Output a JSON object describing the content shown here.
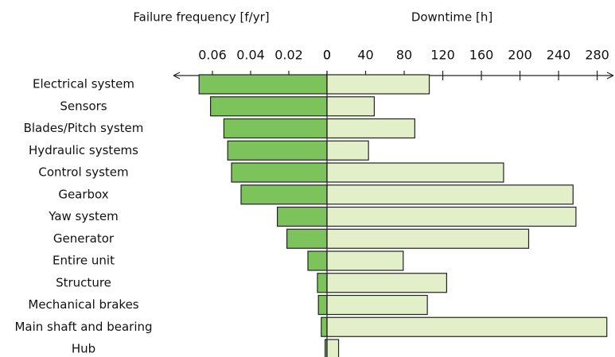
{
  "chart_data": [
    {
      "type": "bar",
      "title": "Failure frequency [f/yr]",
      "categories": [
        "Electrical system",
        "Sensors",
        "Blades/Pitch system",
        "Hydraulic systems",
        "Control system",
        "Gearbox",
        "Yaw system",
        "Generator",
        "Entire unit",
        "Structure",
        "Mechanical brakes",
        "Main shaft and bearing",
        "Hub"
      ],
      "values": [
        0.067,
        0.061,
        0.054,
        0.052,
        0.05,
        0.045,
        0.026,
        0.021,
        0.01,
        0.005,
        0.0045,
        0.003,
        0.001
      ],
      "color": "#7dc35b",
      "xlim": [
        0,
        0.08
      ],
      "xticks": [
        0,
        0.02,
        0.04,
        0.06
      ]
    },
    {
      "type": "bar",
      "title": "Downtime [h]",
      "values": [
        106,
        49,
        91,
        43,
        183,
        255,
        258,
        209,
        79,
        124,
        104,
        290,
        12
      ],
      "color": "#e2efc9",
      "xlim": [
        0,
        296
      ],
      "xticks": [
        0,
        40,
        80,
        120,
        160,
        200,
        240,
        280
      ]
    }
  ]
}
